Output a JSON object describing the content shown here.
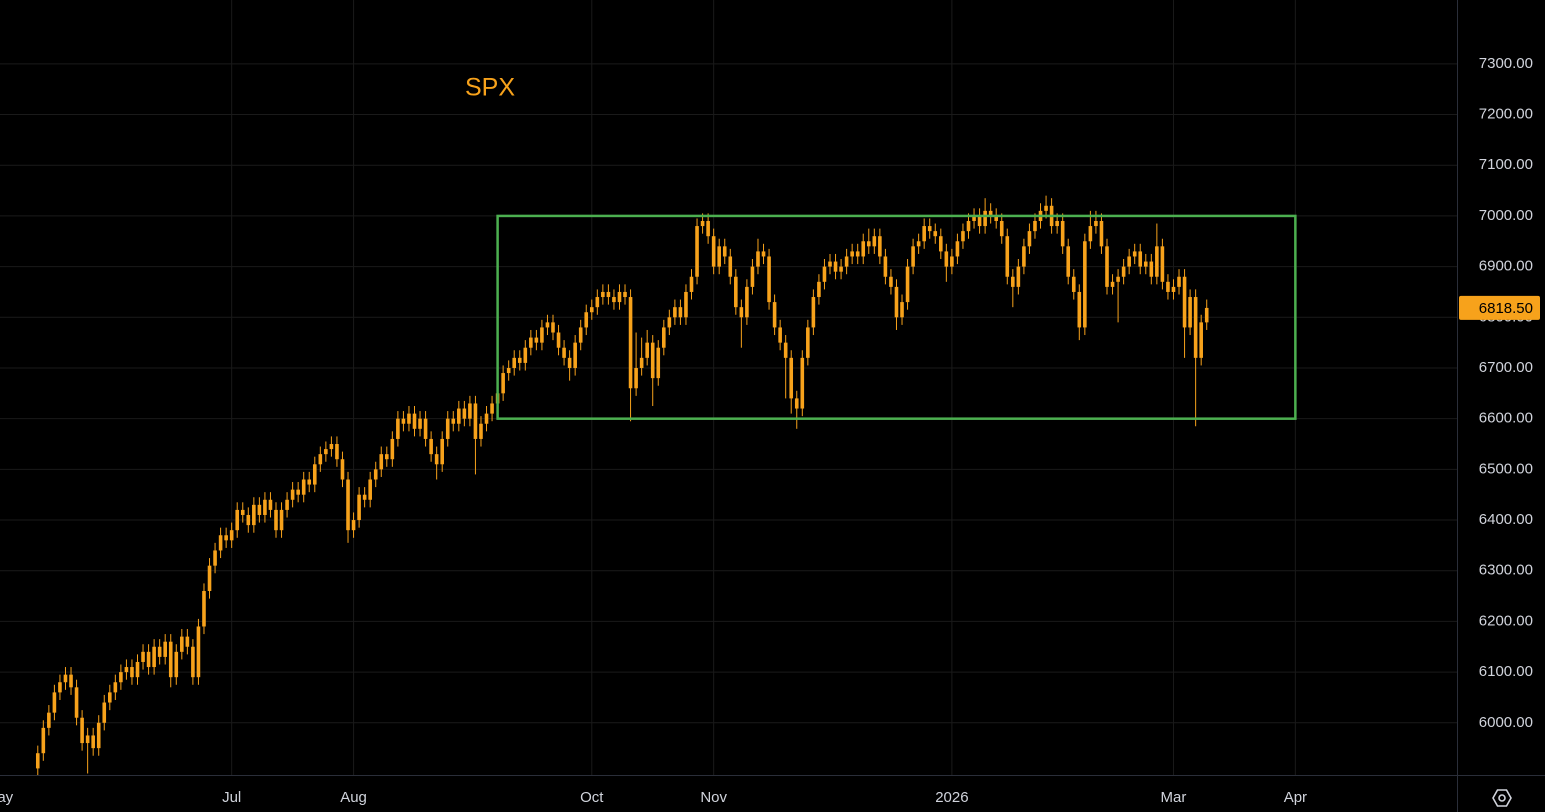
{
  "chart_data": {
    "type": "candlestick",
    "title": "SPX",
    "categories": [
      "May",
      null,
      null,
      null,
      null,
      null,
      null,
      null,
      null,
      null,
      null,
      null,
      null,
      null,
      null,
      null,
      null,
      null,
      null,
      null,
      null,
      null,
      null,
      null,
      null,
      null,
      null,
      null,
      null,
      null,
      null,
      null,
      null,
      null,
      null,
      null,
      null,
      null,
      null,
      null,
      null,
      null,
      "Jul",
      null,
      null,
      null,
      null,
      null,
      null,
      null,
      null,
      null,
      null,
      null,
      null,
      null,
      null,
      null,
      null,
      null,
      null,
      null,
      null,
      null,
      "Aug",
      null,
      null,
      null,
      null,
      null,
      null,
      null,
      null,
      null,
      null,
      null,
      null,
      null,
      null,
      null,
      null,
      null,
      null,
      null,
      null,
      null,
      null,
      null,
      null,
      null,
      null,
      null,
      null,
      null,
      null,
      null,
      null,
      null,
      null,
      null,
      null,
      null,
      null,
      null,
      null,
      null,
      null,
      "Oct",
      null,
      null,
      null,
      null,
      null,
      null,
      null,
      null,
      null,
      null,
      null,
      null,
      null,
      null,
      null,
      null,
      null,
      null,
      null,
      null,
      null,
      "Nov",
      null,
      null,
      null,
      null,
      null,
      null,
      null,
      null,
      null,
      null,
      null,
      null,
      null,
      null,
      null,
      null,
      null,
      null,
      null,
      null,
      null,
      null,
      null,
      null,
      null,
      null,
      null,
      null,
      null,
      null,
      null,
      null,
      null,
      null,
      null,
      null,
      null,
      null,
      null,
      null,
      null,
      null,
      "2026",
      null,
      null,
      null,
      null,
      null,
      null,
      null,
      null,
      null,
      null,
      null,
      null,
      null,
      null,
      null,
      null,
      null,
      null,
      null,
      null,
      null,
      null,
      null,
      null,
      null,
      null,
      null,
      null,
      null,
      null,
      null,
      null,
      null,
      null,
      null,
      null,
      null,
      null,
      null,
      "Mar",
      null,
      null,
      null,
      null,
      null,
      null,
      null,
      null,
      null,
      null,
      null,
      null,
      null,
      null,
      null,
      null,
      null,
      null,
      null,
      null,
      null,
      "Apr"
    ],
    "series": [
      {
        "color": "#f7a21b",
        "open": [
          null,
          null,
          null,
          null,
          null,
          null,
          null,
          5910,
          5940,
          5990,
          6020,
          6060,
          6080,
          6095,
          6070,
          6010,
          5960,
          5975,
          5950,
          6000,
          6040,
          6060,
          6080,
          6100,
          6110,
          6090,
          6120,
          6140,
          6110,
          6150,
          6130,
          6160,
          6090,
          6140,
          6170,
          6150,
          6090,
          6190,
          6260,
          6310,
          6340,
          6370,
          6360,
          6380,
          6420,
          6410,
          6390,
          6430,
          6410,
          6440,
          6420,
          6380,
          6420,
          6440,
          6460,
          6450,
          6480,
          6470,
          6510,
          6530,
          6540,
          6550,
          6520,
          6480,
          6380,
          6400,
          6450,
          6440,
          6480,
          6500,
          6530,
          6520,
          6560,
          6600,
          6590,
          6610,
          6580,
          6600,
          6560,
          6530,
          6510,
          6560,
          6600,
          6590,
          6620,
          6600,
          6630,
          6560,
          6590,
          6610,
          6630,
          6650,
          6690,
          6700,
          6720,
          6710,
          6740,
          6760,
          6750,
          6780,
          6790,
          6770,
          6740,
          6720,
          6700,
          6750,
          6780,
          6810,
          6820,
          6840,
          6850,
          6840,
          6830,
          6850,
          6840,
          6660,
          6700,
          6720,
          6750,
          6680,
          6740,
          6780,
          6800,
          6820,
          6800,
          6850,
          6880,
          6980,
          6990,
          6960,
          6900,
          6940,
          6920,
          6880,
          6820,
          6800,
          6860,
          6900,
          6930,
          6920,
          6830,
          6780,
          6750,
          6720,
          6640,
          6620,
          6720,
          6780,
          6840,
          6870,
          6900,
          6910,
          6890,
          6900,
          6920,
          6930,
          6920,
          6950,
          6940,
          6960,
          6920,
          6880,
          6860,
          6800,
          6830,
          6900,
          6940,
          6950,
          6980,
          6970,
          6960,
          6930,
          6900,
          6920,
          6950,
          6970,
          6990,
          7000,
          6980,
          7010,
          7000,
          6990,
          6960,
          6880,
          6860,
          6900,
          6940,
          6970,
          6990,
          7010,
          7020,
          6980,
          6990,
          6940,
          6880,
          6850,
          6780,
          6950,
          6980,
          6990,
          6940,
          6860,
          6870,
          6880,
          6900,
          6920,
          6930,
          6900,
          6910,
          6880,
          6940,
          6870,
          6850,
          6860,
          6880,
          6780,
          6840,
          6720,
          6790,
          null,
          null,
          null,
          null,
          null,
          null,
          null,
          null,
          null,
          null,
          null,
          null,
          null,
          null,
          null,
          null
        ],
        "high": [
          null,
          null,
          null,
          null,
          null,
          null,
          null,
          5955,
          6005,
          6035,
          6075,
          6095,
          6110,
          6110,
          6085,
          6025,
          5990,
          5990,
          6015,
          6055,
          6075,
          6095,
          6115,
          6125,
          6125,
          6135,
          6155,
          6155,
          6165,
          6165,
          6175,
          6175,
          6155,
          6185,
          6185,
          6165,
          6205,
          6275,
          6325,
          6355,
          6385,
          6385,
          6395,
          6435,
          6435,
          6425,
          6445,
          6445,
          6455,
          6455,
          6435,
          6435,
          6455,
          6475,
          6475,
          6495,
          6495,
          6525,
          6545,
          6555,
          6565,
          6565,
          6535,
          6495,
          6415,
          6465,
          6465,
          6495,
          6515,
          6545,
          6545,
          6575,
          6615,
          6615,
          6625,
          6625,
          6615,
          6615,
          6575,
          6545,
          6575,
          6615,
          6615,
          6635,
          6635,
          6645,
          6645,
          6605,
          6625,
          6645,
          6665,
          6705,
          6715,
          6735,
          6735,
          6755,
          6775,
          6775,
          6795,
          6805,
          6805,
          6785,
          6755,
          6735,
          6765,
          6795,
          6825,
          6835,
          6855,
          6865,
          6865,
          6855,
          6865,
          6865,
          6855,
          6770,
          6760,
          6775,
          6765,
          6755,
          6795,
          6815,
          6835,
          6835,
          6865,
          6895,
          6995,
          7005,
          7005,
          6975,
          6955,
          6955,
          6935,
          6895,
          6835,
          6875,
          6915,
          6955,
          6945,
          6935,
          6845,
          6795,
          6765,
          6735,
          6655,
          6735,
          6795,
          6855,
          6885,
          6915,
          6925,
          6925,
          6915,
          6935,
          6945,
          6945,
          6965,
          6975,
          6975,
          6975,
          6935,
          6895,
          6875,
          6845,
          6915,
          6955,
          6965,
          6995,
          6995,
          6985,
          6975,
          6945,
          6935,
          6965,
          6985,
          7005,
          7015,
          7015,
          7035,
          7025,
          7015,
          7005,
          6975,
          6895,
          6915,
          6955,
          6985,
          7005,
          7025,
          7040,
          7035,
          7005,
          7005,
          6955,
          6895,
          6865,
          6965,
          7010,
          7010,
          7005,
          6955,
          6885,
          6895,
          6915,
          6935,
          6945,
          6945,
          6925,
          6925,
          6985,
          6955,
          6885,
          6875,
          6895,
          6895,
          6855,
          6855,
          6805,
          6835,
          null,
          null,
          null,
          null,
          null,
          null,
          null,
          null,
          null,
          null,
          null,
          null,
          null,
          null,
          null,
          null
        ],
        "low": [
          null,
          null,
          null,
          null,
          null,
          null,
          null,
          5880,
          5925,
          5975,
          6005,
          6045,
          6065,
          6055,
          5995,
          5945,
          5900,
          5935,
          5935,
          5985,
          6025,
          6045,
          6065,
          6085,
          6075,
          6075,
          6105,
          6095,
          6095,
          6115,
          6115,
          6070,
          6075,
          6125,
          6135,
          6075,
          6075,
          6175,
          6245,
          6295,
          6325,
          6345,
          6345,
          6365,
          6395,
          6375,
          6375,
          6395,
          6395,
          6405,
          6365,
          6365,
          6405,
          6425,
          6435,
          6435,
          6455,
          6455,
          6495,
          6515,
          6525,
          6505,
          6465,
          6355,
          6365,
          6385,
          6425,
          6425,
          6465,
          6485,
          6505,
          6505,
          6545,
          6575,
          6575,
          6565,
          6565,
          6545,
          6515,
          6480,
          6495,
          6545,
          6575,
          6575,
          6585,
          6585,
          6490,
          6545,
          6575,
          6595,
          6615,
          6635,
          6675,
          6685,
          6695,
          6695,
          6725,
          6735,
          6735,
          6765,
          6755,
          6725,
          6705,
          6675,
          6685,
          6735,
          6765,
          6795,
          6805,
          6825,
          6825,
          6815,
          6815,
          6825,
          6595,
          6645,
          6685,
          6705,
          6625,
          6665,
          6725,
          6765,
          6785,
          6785,
          6785,
          6835,
          6865,
          6965,
          6945,
          6885,
          6885,
          6905,
          6865,
          6805,
          6740,
          6785,
          6845,
          6885,
          6905,
          6815,
          6765,
          6735,
          6640,
          6610,
          6580,
          6605,
          6705,
          6765,
          6825,
          6855,
          6885,
          6875,
          6875,
          6885,
          6905,
          6905,
          6905,
          6925,
          6925,
          6905,
          6865,
          6845,
          6775,
          6785,
          6815,
          6885,
          6925,
          6935,
          6955,
          6945,
          6915,
          6870,
          6885,
          6905,
          6935,
          6955,
          6975,
          6965,
          6965,
          6985,
          6975,
          6945,
          6865,
          6820,
          6845,
          6885,
          6925,
          6955,
          6975,
          6995,
          6965,
          6965,
          6925,
          6865,
          6835,
          6755,
          6765,
          6935,
          6965,
          6925,
          6845,
          6845,
          6790,
          6865,
          6885,
          6905,
          6885,
          6885,
          6865,
          6865,
          6855,
          6835,
          6835,
          6845,
          6720,
          6765,
          6585,
          6705,
          6775,
          null,
          null,
          null,
          null,
          null,
          null,
          null,
          null,
          null,
          null,
          null,
          null,
          null,
          null,
          null,
          null
        ],
        "close": [
          null,
          null,
          null,
          null,
          null,
          null,
          null,
          5940,
          5990,
          6020,
          6060,
          6080,
          6095,
          6070,
          6010,
          5960,
          5975,
          5950,
          6000,
          6040,
          6060,
          6080,
          6100,
          6110,
          6090,
          6120,
          6140,
          6110,
          6150,
          6130,
          6160,
          6090,
          6140,
          6170,
          6150,
          6090,
          6190,
          6260,
          6310,
          6340,
          6370,
          6360,
          6380,
          6420,
          6410,
          6390,
          6430,
          6410,
          6440,
          6420,
          6380,
          6420,
          6440,
          6460,
          6450,
          6480,
          6470,
          6510,
          6530,
          6540,
          6550,
          6520,
          6480,
          6380,
          6400,
          6450,
          6440,
          6480,
          6500,
          6530,
          6520,
          6560,
          6600,
          6590,
          6610,
          6580,
          6600,
          6560,
          6530,
          6510,
          6560,
          6600,
          6590,
          6620,
          6600,
          6630,
          6560,
          6590,
          6610,
          6630,
          6650,
          6690,
          6700,
          6720,
          6710,
          6740,
          6760,
          6750,
          6780,
          6790,
          6770,
          6740,
          6720,
          6700,
          6750,
          6780,
          6810,
          6820,
          6840,
          6850,
          6840,
          6830,
          6850,
          6840,
          6660,
          6700,
          6720,
          6750,
          6680,
          6740,
          6780,
          6800,
          6820,
          6800,
          6850,
          6880,
          6980,
          6990,
          6960,
          6900,
          6940,
          6920,
          6880,
          6820,
          6800,
          6860,
          6900,
          6930,
          6920,
          6830,
          6780,
          6750,
          6720,
          6640,
          6620,
          6720,
          6780,
          6840,
          6870,
          6900,
          6910,
          6890,
          6900,
          6920,
          6930,
          6920,
          6950,
          6940,
          6960,
          6920,
          6880,
          6860,
          6800,
          6830,
          6900,
          6940,
          6950,
          6980,
          6970,
          6960,
          6930,
          6900,
          6920,
          6950,
          6970,
          6990,
          7000,
          6980,
          7010,
          7000,
          6990,
          6960,
          6880,
          6860,
          6900,
          6940,
          6970,
          6990,
          7010,
          7020,
          6980,
          6990,
          6940,
          6880,
          6850,
          6780,
          6950,
          6980,
          6990,
          6940,
          6860,
          6870,
          6880,
          6900,
          6920,
          6930,
          6900,
          6910,
          6880,
          6940,
          6870,
          6850,
          6860,
          6880,
          6780,
          6840,
          6720,
          6790,
          6818.5,
          null,
          null,
          null,
          null,
          null,
          null,
          null,
          null,
          null,
          null,
          null,
          null,
          null,
          null,
          null,
          null
        ]
      }
    ],
    "ylim": [
      5897,
      7426
    ],
    "yticks": [
      {
        "value": 6000,
        "label": "6000.00"
      },
      {
        "value": 6100,
        "label": "6100.00"
      },
      {
        "value": 6200,
        "label": "6200.00"
      },
      {
        "value": 6300,
        "label": "6300.00"
      },
      {
        "value": 6400,
        "label": "6400.00"
      },
      {
        "value": 6500,
        "label": "6500.00"
      },
      {
        "value": 6600,
        "label": "6600.00"
      },
      {
        "value": 6700,
        "label": "6700.00"
      },
      {
        "value": 6800,
        "label": "6800.00"
      },
      {
        "value": 6900,
        "label": "6900.00"
      },
      {
        "value": 7000,
        "label": "7000.00"
      },
      {
        "value": 7100,
        "label": "7100.00"
      },
      {
        "value": 7200,
        "label": "7200.00"
      },
      {
        "value": 7300,
        "label": "7300.00"
      }
    ],
    "last_price": {
      "value": 6818.5,
      "label": "6818.50"
    },
    "annotations": [
      {
        "shape": "rectangle",
        "color": "#4caf50",
        "x": [
          90,
          234
        ],
        "y": [
          6600,
          7000
        ]
      }
    ],
    "grid": true
  }
}
